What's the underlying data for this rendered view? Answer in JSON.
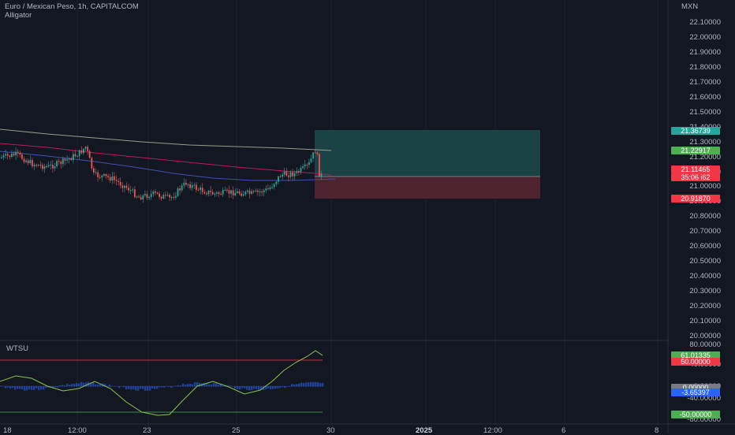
{
  "legend": {
    "symbol": "Euro / Mexican Peso, 1h, CAPITALCOM",
    "indicator": "Alligator",
    "oscillator": "WTSU"
  },
  "axis": {
    "currency": "MXN",
    "price_ticks": [
      "22.10000",
      "22.00000",
      "21.90000",
      "21.80000",
      "21.70000",
      "21.60000",
      "21.50000",
      "21.40000",
      "21.30000",
      "21.20000",
      "21.10000",
      "21.00000",
      "20.90000",
      "20.80000",
      "20.70000",
      "20.60000",
      "20.50000",
      "20.40000",
      "20.30000",
      "20.20000",
      "20.10000",
      "20.00000"
    ],
    "osc_ticks": [
      "80.00000",
      "40.00000",
      "0.00000",
      "-40.00000",
      "-80.00000"
    ],
    "time_ticks": [
      {
        "label": "18",
        "bold": false
      },
      {
        "label": "12:00",
        "bold": false
      },
      {
        "label": "23",
        "bold": false
      },
      {
        "label": "25",
        "bold": false
      },
      {
        "label": "30",
        "bold": false
      },
      {
        "label": "2025",
        "bold": true
      },
      {
        "label": "12:00",
        "bold": false
      },
      {
        "label": "6",
        "bold": false
      },
      {
        "label": "8",
        "bold": false
      }
    ]
  },
  "price_tags": [
    {
      "label": "21.36739",
      "color": "#26a69a"
    },
    {
      "label": "21.22917",
      "color": "#4caf50"
    },
    {
      "label": "21.11465",
      "color": "#f23645"
    },
    {
      "label": "35:06 i62",
      "color": "#f23645"
    },
    {
      "label": "20.91870",
      "color": "#f23645"
    }
  ],
  "osc_tags": [
    {
      "label": "61.01335",
      "color": "#4caf50"
    },
    {
      "label": "50.00000",
      "color": "#f23645"
    },
    {
      "label": "0.00000",
      "color": "#787b86"
    },
    {
      "label": "-3.65397",
      "color": "#2962ff"
    },
    {
      "label": "-50.00000",
      "color": "#4caf50"
    }
  ],
  "colors": {
    "background": "#131722",
    "up": "#26a69a",
    "down": "#ef5350",
    "long_profit_zone": "#1d4a4a",
    "long_loss_zone": "#5a2532"
  }
}
